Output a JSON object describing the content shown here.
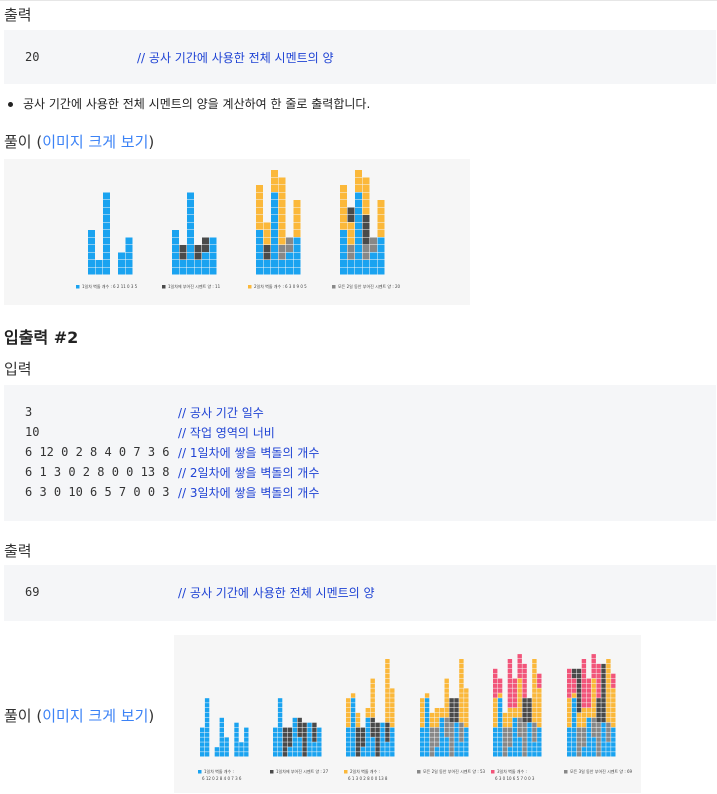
{
  "section1": {
    "output_heading": "출력",
    "output_code": {
      "value": "20",
      "comment": "// 공사 기간에 사용한 전체 시멘트의 양"
    },
    "bullet": "공사 기간에 사용한 전체 시멘트의 양을 계산하여 한 줄로 출력합니다.",
    "solution": {
      "prefix": "풀이 (",
      "link": "이미지 크게 보기",
      "suffix": ")"
    },
    "figure_legends": [
      "1일차 벽돌 개수 : 6 2 11 0 3 5",
      "1일차에 부어진 시멘트 양 : 11",
      "2일차 벽돌 개수 : 6 3 0 9 0 5",
      "모든 2일 동안 부어진 시멘트 양 : 20"
    ]
  },
  "section2": {
    "title": "입출력 #2",
    "input_heading": "입력",
    "input_lines": [
      {
        "value": "3",
        "comment": "// 공사 기간 일수"
      },
      {
        "value": "10",
        "comment": "// 작업 영역의 너비"
      },
      {
        "value": "6 12 0 2 8 4 0 7 3 6",
        "comment": "// 1일차에 쌓을 벽돌의 개수"
      },
      {
        "value": "6 1 3 0 2 8 0 0 13 8",
        "comment": "// 2일차에 쌓을 벽돌의 개수"
      },
      {
        "value": "6 3 0 10 6 5 7 0 0 3",
        "comment": "// 3일차에 쌓을 벽돌의 개수"
      }
    ],
    "output_heading": "출력",
    "output_code": {
      "value": "69",
      "comment": "// 공사 기간에 사용한 전체 시멘트의 양"
    },
    "solution": {
      "prefix": "풀이 (",
      "link": "이미지 크게 보기",
      "suffix": ")"
    },
    "figure_legends": [
      "1일차 벽돌 개수 :",
      "1일차에 부어진 시멘트 양 : 27",
      "2일차 벽돌 개수 :",
      "모든 2일 동안 부어진 시멘트 양 : 53",
      "3일차 벽돌 개수 :",
      "모든 3일 동안 부어진 시멘트 양 : 69"
    ],
    "figure_legend_values": [
      "6 12 0 2 8 4 0 7 3 6",
      "6 1 3 0 2 8 0 0 13 8",
      "6 3 0 10 6 5 7 0 0 3"
    ]
  },
  "colors": {
    "blue": "#1aa3f0",
    "gray": "#888888",
    "dark": "#4a4a4a",
    "yellow": "#fbb83a",
    "pink": "#f2557a",
    "code_bg": "#f5f6f8",
    "comment": "#1f43d4",
    "link": "#3b82f6"
  }
}
